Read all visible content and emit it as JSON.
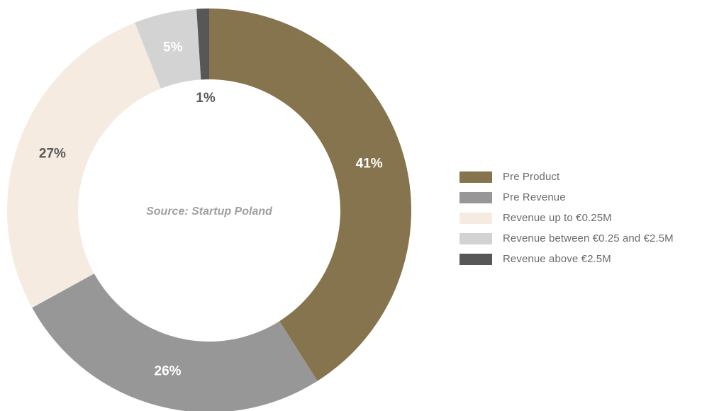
{
  "chart_data": {
    "type": "pie",
    "subtype": "donut",
    "title": "",
    "source": "Source: Startup Poland",
    "slices": [
      {
        "label": "Pre Product",
        "value": 41,
        "display": "41%",
        "color": "#85744d",
        "label_color": "#ffffff"
      },
      {
        "label": "Pre Revenue",
        "value": 26,
        "display": "26%",
        "color": "#979797",
        "label_color": "#ffffff"
      },
      {
        "label": "Revenue up to €0.25M",
        "value": 27,
        "display": "27%",
        "color": "#f5ebe1",
        "label_color": "#595959"
      },
      {
        "label": "Revenue between €0.25 and €2.5M",
        "value": 5,
        "display": "5%",
        "color": "#d3d3d3",
        "label_color": "#ffffff"
      },
      {
        "label": "Revenue above €2.5M",
        "value": 1,
        "display": "1%",
        "color": "#575757",
        "label_color": "#595959"
      }
    ],
    "legend_position": "right"
  }
}
